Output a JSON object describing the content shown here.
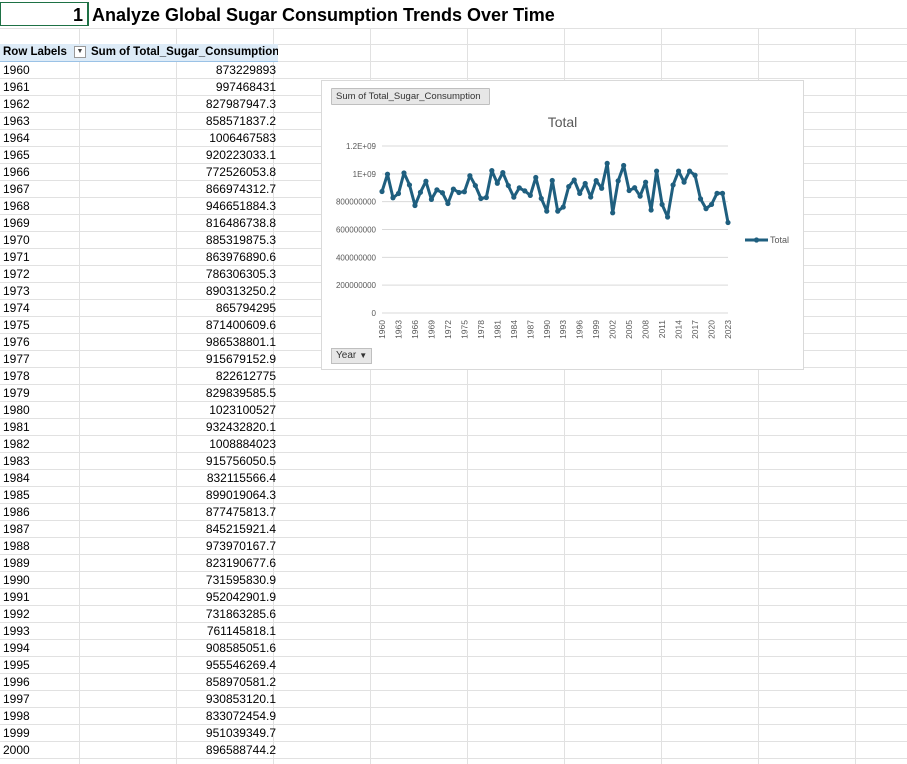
{
  "sheet": {
    "title_number": "1",
    "title_text": "Analyze Global Sugar Consumption Trends Over Time"
  },
  "pivot": {
    "row_labels_header": "Row Labels",
    "value_header": "Sum of Total_Sugar_Consumption",
    "rows": [
      {
        "year": "1960",
        "value": "873229893"
      },
      {
        "year": "1961",
        "value": "997468431"
      },
      {
        "year": "1962",
        "value": "827987947.3"
      },
      {
        "year": "1963",
        "value": "858571837.2"
      },
      {
        "year": "1964",
        "value": "1006467583"
      },
      {
        "year": "1965",
        "value": "920223033.1"
      },
      {
        "year": "1966",
        "value": "772526053.8"
      },
      {
        "year": "1967",
        "value": "866974312.7"
      },
      {
        "year": "1968",
        "value": "946651884.3"
      },
      {
        "year": "1969",
        "value": "816486738.8"
      },
      {
        "year": "1970",
        "value": "885319875.3"
      },
      {
        "year": "1971",
        "value": "863976890.6"
      },
      {
        "year": "1972",
        "value": "786306305.3"
      },
      {
        "year": "1973",
        "value": "890313250.2"
      },
      {
        "year": "1974",
        "value": "865794295"
      },
      {
        "year": "1975",
        "value": "871400609.6"
      },
      {
        "year": "1976",
        "value": "986538801.1"
      },
      {
        "year": "1977",
        "value": "915679152.9"
      },
      {
        "year": "1978",
        "value": "822612775"
      },
      {
        "year": "1979",
        "value": "829839585.5"
      },
      {
        "year": "1980",
        "value": "1023100527"
      },
      {
        "year": "1981",
        "value": "932432820.1"
      },
      {
        "year": "1982",
        "value": "1008884023"
      },
      {
        "year": "1983",
        "value": "915756050.5"
      },
      {
        "year": "1984",
        "value": "832115566.4"
      },
      {
        "year": "1985",
        "value": "899019064.3"
      },
      {
        "year": "1986",
        "value": "877475813.7"
      },
      {
        "year": "1987",
        "value": "845215921.4"
      },
      {
        "year": "1988",
        "value": "973970167.7"
      },
      {
        "year": "1989",
        "value": "823190677.6"
      },
      {
        "year": "1990",
        "value": "731595830.9"
      },
      {
        "year": "1991",
        "value": "952042901.9"
      },
      {
        "year": "1992",
        "value": "731863285.6"
      },
      {
        "year": "1993",
        "value": "761145818.1"
      },
      {
        "year": "1994",
        "value": "908585051.6"
      },
      {
        "year": "1995",
        "value": "955546269.4"
      },
      {
        "year": "1996",
        "value": "858970581.2"
      },
      {
        "year": "1997",
        "value": "930853120.1"
      },
      {
        "year": "1998",
        "value": "833072454.9"
      },
      {
        "year": "1999",
        "value": "951039349.7"
      },
      {
        "year": "2000",
        "value": "896588744.2"
      }
    ]
  },
  "chart_data": {
    "type": "line",
    "field_button": "Sum of Total_Sugar_Consumption",
    "title": "Total",
    "axis_button": "Year",
    "legend": {
      "entries": [
        "Total"
      ],
      "position": "right"
    },
    "ylim": [
      0,
      1200000000
    ],
    "ytick_labels": [
      "0",
      "200000000",
      "400000000",
      "600000000",
      "800000000",
      "1E+09",
      "1.2E+09"
    ],
    "ytick_values": [
      0,
      200000000,
      400000000,
      600000000,
      800000000,
      1000000000,
      1200000000
    ],
    "xtick_labels": [
      "1960",
      "1963",
      "1966",
      "1969",
      "1972",
      "1975",
      "1978",
      "1981",
      "1984",
      "1987",
      "1990",
      "1993",
      "1996",
      "1999",
      "2002",
      "2005",
      "2008",
      "2011",
      "2014",
      "2017",
      "2020",
      "2023"
    ],
    "series": [
      {
        "name": "Total",
        "color": "#1f5f7f",
        "x": [
          1960,
          1961,
          1962,
          1963,
          1964,
          1965,
          1966,
          1967,
          1968,
          1969,
          1970,
          1971,
          1972,
          1973,
          1974,
          1975,
          1976,
          1977,
          1978,
          1979,
          1980,
          1981,
          1982,
          1983,
          1984,
          1985,
          1986,
          1987,
          1988,
          1989,
          1990,
          1991,
          1992,
          1993,
          1994,
          1995,
          1996,
          1997,
          1998,
          1999,
          2000,
          2001,
          2002,
          2003,
          2004,
          2005,
          2006,
          2007,
          2008,
          2009,
          2010,
          2011,
          2012,
          2013,
          2014,
          2015,
          2016,
          2017,
          2018,
          2019,
          2020,
          2021,
          2022,
          2023
        ],
        "values": [
          873229893,
          997468431,
          827987947.3,
          858571837.2,
          1006467583,
          920223033.1,
          772526053.8,
          866974312.7,
          946651884.3,
          816486738.8,
          885319875.3,
          863976890.6,
          786306305.3,
          890313250.2,
          865794295,
          871400609.6,
          986538801.1,
          915679152.9,
          822612775,
          829839585.5,
          1023100527,
          932432820.1,
          1008884023,
          915756050.5,
          832115566.4,
          899019064.3,
          877475813.7,
          845215921.4,
          973970167.7,
          823190677.6,
          731595830.9,
          952042901.9,
          731863285.6,
          761145818.1,
          908585051.6,
          955546269.4,
          858970581.2,
          930853120.1,
          833072454.9,
          951039349.7,
          896588744.2,
          1075000000,
          720000000,
          950000000,
          1060000000,
          880000000,
          900000000,
          840000000,
          940000000,
          740000000,
          1020000000,
          780000000,
          690000000,
          920000000,
          1020000000,
          940000000,
          1020000000,
          990000000,
          820000000,
          750000000,
          780000000,
          860000000,
          860000000,
          650000000
        ]
      }
    ]
  }
}
